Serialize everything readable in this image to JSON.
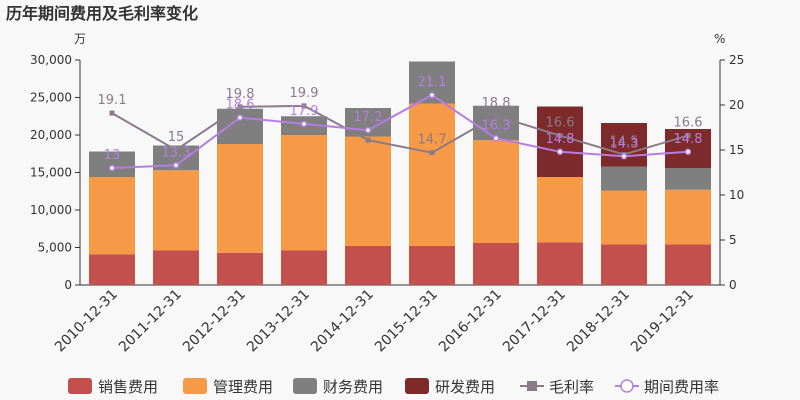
{
  "chart_data": {
    "type": "bar",
    "title": "历年期间费用及毛利率变化",
    "left_unit": "万",
    "right_unit": "%",
    "categories": [
      "2010-12-31",
      "2011-12-31",
      "2012-12-31",
      "2013-12-31",
      "2014-12-31",
      "2015-12-31",
      "2016-12-31",
      "2017-12-31",
      "2018-12-31",
      "2019-12-31"
    ],
    "left_axis": {
      "min": 0,
      "max": 30000,
      "ticks": [
        0,
        5000,
        10000,
        15000,
        20000,
        25000,
        30000
      ],
      "tick_labels": [
        "0",
        "5,000",
        "10,000",
        "15,000",
        "20,000",
        "25,000",
        "30,000"
      ]
    },
    "right_axis": {
      "min": 0,
      "max": 25,
      "ticks": [
        0,
        5,
        10,
        15,
        20,
        25
      ],
      "tick_labels": [
        "0",
        "5",
        "10",
        "15",
        "20",
        "25"
      ]
    },
    "bar_series": [
      {
        "name": "销售费用",
        "color": "#c44f4f",
        "values": [
          4100,
          4600,
          4300,
          4600,
          5200,
          5200,
          5600,
          5700,
          5400,
          5400
        ]
      },
      {
        "name": "管理费用",
        "color": "#f79a47",
        "values": [
          10300,
          10700,
          14500,
          15400,
          14600,
          19000,
          13700,
          8700,
          7200,
          7300
        ]
      },
      {
        "name": "财务费用",
        "color": "#7f7f7f",
        "values": [
          3400,
          3300,
          4700,
          2500,
          3800,
          5600,
          4600,
          0,
          3200,
          2900
        ]
      },
      {
        "name": "研发费用",
        "color": "#7f2a2a",
        "values": [
          0,
          0,
          0,
          0,
          0,
          0,
          0,
          9400,
          5800,
          5200
        ]
      }
    ],
    "line_series": [
      {
        "name": "毛利率",
        "color": "#8a7b89",
        "marker": "square",
        "values": [
          19.1,
          15,
          19.8,
          19.9,
          16.1,
          14.7,
          18.8,
          16.6,
          14.5,
          16.6
        ],
        "labels": [
          "19.1",
          "15",
          "19.8",
          "19.9",
          "",
          "14.7",
          "18.8",
          "16.6",
          "14.5",
          "16.6"
        ]
      },
      {
        "name": "期间费用率",
        "color": "#b57ee0",
        "marker": "circle",
        "values": [
          13,
          13.3,
          18.6,
          17.9,
          17.2,
          21.1,
          16.3,
          14.8,
          14.3,
          14.8
        ],
        "labels": [
          "13",
          "13.3",
          "18.6",
          "17.9",
          "17.2",
          "21.1",
          "16.3",
          "14.8",
          "14.3",
          "14.8"
        ]
      }
    ],
    "legend": {
      "position": "bottom",
      "items": [
        {
          "name": "销售费用",
          "color": "#c44f4f",
          "shape": "bar"
        },
        {
          "name": "管理费用",
          "color": "#f79a47",
          "shape": "bar"
        },
        {
          "name": "财务费用",
          "color": "#7f7f7f",
          "shape": "bar"
        },
        {
          "name": "研发费用",
          "color": "#7f2a2a",
          "shape": "bar"
        },
        {
          "name": "毛利率",
          "color": "#8a7b89",
          "shape": "line-square"
        },
        {
          "name": "期间费用率",
          "color": "#b57ee0",
          "shape": "line-circle"
        }
      ]
    },
    "grid": false
  }
}
